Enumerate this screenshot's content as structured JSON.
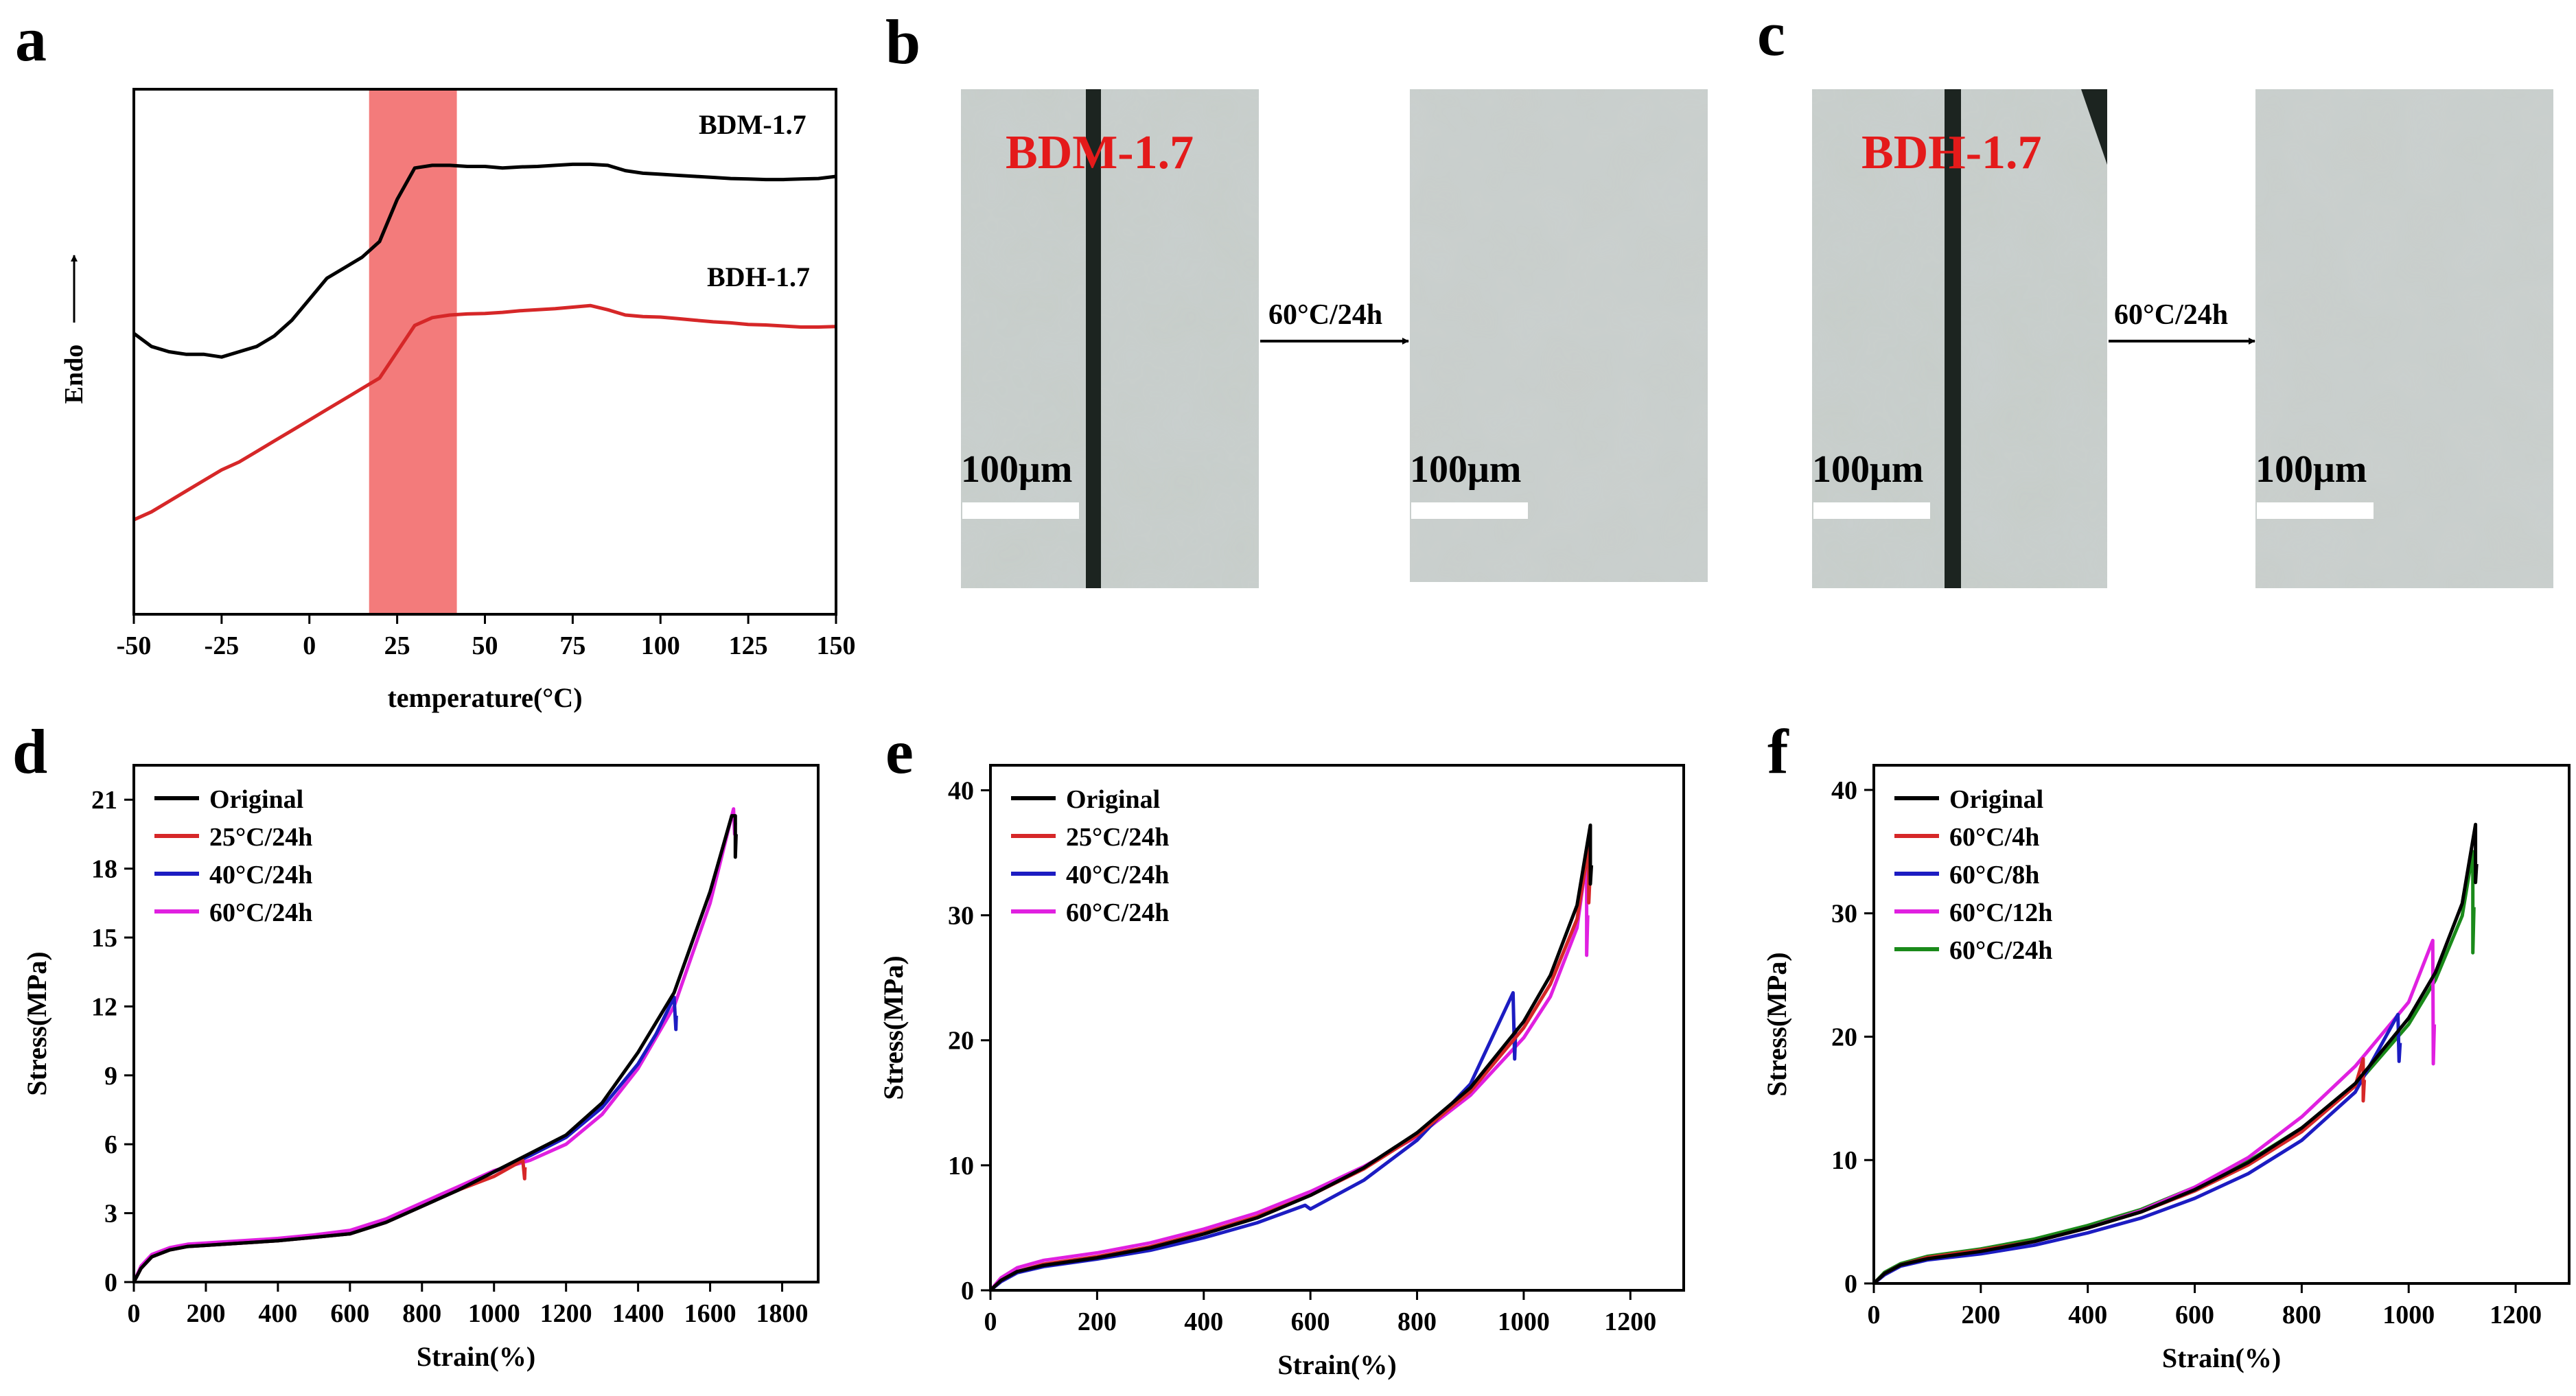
{
  "panels": {
    "a": {
      "letter": "a"
    },
    "b": {
      "letter": "b",
      "sample": "BDM-1.7",
      "treatment": "60°C/24h",
      "scale": "100μm"
    },
    "c": {
      "letter": "c",
      "sample": "BDH-1.7",
      "treatment": "60°C/24h",
      "scale": "100μm"
    },
    "d": {
      "letter": "d"
    },
    "e": {
      "letter": "e"
    },
    "f": {
      "letter": "f"
    }
  },
  "colors": {
    "black": "#000000",
    "red": "#d62728",
    "blue": "#1c1cc2",
    "magenta": "#e020e0",
    "green": "#1a8a1a",
    "band": "#f37b7b",
    "micro": "#c7cdc9"
  },
  "chart_data": [
    {
      "id": "a",
      "type": "line",
      "title": "",
      "xlabel": "temperature(°C)",
      "ylabel": "Endo",
      "xlim": [
        -50,
        150
      ],
      "ylim": [
        0,
        1
      ],
      "show_y_ticks": false,
      "xticks": [
        -50,
        -25,
        0,
        25,
        50,
        75,
        100,
        125,
        150
      ],
      "highlight_band": [
        17,
        42
      ],
      "labels": {
        "BDM-1.7": "BDM-1.7",
        "BDH-1.7": "BDH-1.7"
      },
      "series": [
        {
          "name": "BDM-1.7",
          "color": "#000000",
          "x": [
            -50,
            -45,
            -40,
            -35,
            -30,
            -25,
            -20,
            -15,
            -10,
            -5,
            0,
            5,
            10,
            15,
            20,
            25,
            30,
            35,
            40,
            45,
            50,
            55,
            60,
            65,
            70,
            75,
            80,
            85,
            90,
            95,
            100,
            105,
            110,
            115,
            120,
            125,
            130,
            135,
            140,
            145,
            150
          ],
          "y": [
            0.535,
            0.51,
            0.5,
            0.495,
            0.495,
            0.49,
            0.5,
            0.51,
            0.53,
            0.56,
            0.6,
            0.64,
            0.66,
            0.68,
            0.71,
            0.79,
            0.85,
            0.855,
            0.855,
            0.853,
            0.853,
            0.85,
            0.852,
            0.853,
            0.855,
            0.857,
            0.857,
            0.855,
            0.845,
            0.84,
            0.838,
            0.836,
            0.834,
            0.832,
            0.83,
            0.829,
            0.828,
            0.828,
            0.829,
            0.83,
            0.834
          ]
        },
        {
          "name": "BDH-1.7",
          "color": "#d62728",
          "x": [
            -50,
            -45,
            -40,
            -35,
            -30,
            -25,
            -20,
            -15,
            -10,
            -5,
            0,
            5,
            10,
            15,
            20,
            25,
            30,
            35,
            40,
            45,
            50,
            55,
            60,
            65,
            70,
            75,
            80,
            85,
            90,
            95,
            100,
            105,
            110,
            115,
            120,
            125,
            130,
            135,
            140,
            145,
            150
          ],
          "y": [
            0.18,
            0.195,
            0.215,
            0.235,
            0.255,
            0.275,
            0.29,
            0.31,
            0.33,
            0.35,
            0.37,
            0.39,
            0.41,
            0.43,
            0.45,
            0.5,
            0.55,
            0.565,
            0.57,
            0.572,
            0.573,
            0.575,
            0.578,
            0.58,
            0.582,
            0.585,
            0.588,
            0.58,
            0.57,
            0.567,
            0.566,
            0.563,
            0.56,
            0.557,
            0.555,
            0.552,
            0.551,
            0.549,
            0.547,
            0.547,
            0.548
          ]
        }
      ]
    },
    {
      "id": "d",
      "type": "line",
      "title": "",
      "xlabel": "Strain(%)",
      "ylabel": "Stress(MPa)",
      "xlim": [
        0,
        1900
      ],
      "ylim": [
        0,
        22.5
      ],
      "xticks": [
        0,
        200,
        400,
        600,
        800,
        1000,
        1200,
        1400,
        1600,
        1800
      ],
      "yticks": [
        0,
        3,
        6,
        9,
        12,
        15,
        18,
        21
      ],
      "legend": "top-left",
      "series": [
        {
          "name": "Original",
          "color": "#000000",
          "x": [
            0,
            20,
            50,
            100,
            150,
            200,
            300,
            400,
            500,
            600,
            700,
            800,
            900,
            1000,
            1100,
            1200,
            1300,
            1400,
            1500,
            1600,
            1660,
            1670,
            1670,
            1672
          ],
          "y": [
            0,
            0.6,
            1.1,
            1.4,
            1.55,
            1.6,
            1.7,
            1.8,
            1.95,
            2.1,
            2.6,
            3.3,
            4.0,
            4.8,
            5.6,
            6.4,
            7.8,
            10,
            12.6,
            17,
            20.3,
            20.3,
            18.5,
            19.5
          ]
        },
        {
          "name": "25°C/24h",
          "color": "#d62728",
          "x": [
            0,
            20,
            50,
            100,
            150,
            200,
            300,
            400,
            500,
            600,
            700,
            800,
            900,
            1000,
            1080,
            1085,
            1086
          ],
          "y": [
            0,
            0.6,
            1.1,
            1.4,
            1.55,
            1.6,
            1.7,
            1.8,
            1.95,
            2.1,
            2.6,
            3.3,
            4.0,
            4.6,
            5.3,
            4.5,
            5.0
          ]
        },
        {
          "name": "40°C/24h",
          "color": "#1c1cc2",
          "x": [
            0,
            20,
            50,
            100,
            150,
            200,
            300,
            400,
            500,
            600,
            700,
            800,
            900,
            1000,
            1100,
            1200,
            1300,
            1400,
            1450,
            1500,
            1505,
            1506
          ],
          "y": [
            0,
            0.6,
            1.1,
            1.4,
            1.55,
            1.6,
            1.7,
            1.8,
            1.95,
            2.1,
            2.6,
            3.3,
            4.0,
            4.8,
            5.5,
            6.3,
            7.6,
            9.5,
            10.8,
            12.4,
            11.0,
            11.6
          ]
        },
        {
          "name": "60°C/24h",
          "color": "#e020e0",
          "x": [
            0,
            20,
            50,
            100,
            150,
            200,
            300,
            400,
            500,
            600,
            700,
            800,
            900,
            1000,
            1100,
            1200,
            1300,
            1400,
            1500,
            1600,
            1665,
            1668,
            1670
          ],
          "y": [
            0,
            0.7,
            1.2,
            1.5,
            1.65,
            1.7,
            1.8,
            1.9,
            2.05,
            2.25,
            2.75,
            3.45,
            4.15,
            4.85,
            5.3,
            6.0,
            7.3,
            9.3,
            12.0,
            16.5,
            20.6,
            19.5,
            20.0
          ]
        }
      ]
    },
    {
      "id": "e",
      "type": "line",
      "title": "",
      "xlabel": "Strain(%)",
      "ylabel": "Stress(MPa)",
      "xlim": [
        0,
        1300
      ],
      "ylim": [
        0,
        42
      ],
      "xticks": [
        0,
        200,
        400,
        600,
        800,
        1000,
        1200
      ],
      "yticks": [
        0,
        10,
        20,
        30,
        40
      ],
      "legend": "top-left",
      "series": [
        {
          "name": "Original",
          "color": "#000000",
          "x": [
            0,
            20,
            50,
            100,
            200,
            300,
            400,
            500,
            600,
            700,
            800,
            900,
            1000,
            1050,
            1100,
            1125,
            1125,
            1127
          ],
          "y": [
            0,
            0.8,
            1.5,
            2.0,
            2.6,
            3.4,
            4.5,
            5.8,
            7.6,
            9.8,
            12.6,
            16.2,
            21.5,
            25.2,
            30.8,
            37.2,
            32.5,
            34.0
          ]
        },
        {
          "name": "25°C/24h",
          "color": "#d62728",
          "x": [
            0,
            20,
            50,
            100,
            200,
            300,
            400,
            500,
            600,
            700,
            800,
            900,
            1000,
            1050,
            1100,
            1122,
            1122,
            1124
          ],
          "y": [
            0,
            0.8,
            1.5,
            2.1,
            2.7,
            3.5,
            4.6,
            5.9,
            7.6,
            9.7,
            12.4,
            15.9,
            21.0,
            24.5,
            29.7,
            35.5,
            31.0,
            33.0
          ]
        },
        {
          "name": "40°C/24h",
          "color": "#1c1cc2",
          "x": [
            0,
            20,
            50,
            100,
            200,
            300,
            400,
            500,
            590,
            600,
            700,
            800,
            900,
            980,
            983,
            985
          ],
          "y": [
            0,
            0.7,
            1.4,
            1.9,
            2.5,
            3.2,
            4.2,
            5.4,
            6.8,
            6.5,
            8.8,
            12.0,
            16.5,
            23.8,
            18.5,
            21.0
          ]
        },
        {
          "name": "60°C/24h",
          "color": "#e020e0",
          "x": [
            0,
            20,
            50,
            100,
            200,
            300,
            400,
            500,
            600,
            700,
            800,
            900,
            1000,
            1050,
            1100,
            1118,
            1118,
            1120
          ],
          "y": [
            0,
            1.0,
            1.8,
            2.4,
            3.0,
            3.8,
            4.9,
            6.2,
            7.9,
            9.9,
            12.3,
            15.6,
            20.2,
            23.5,
            29.0,
            34.5,
            26.8,
            30.0
          ]
        }
      ]
    },
    {
      "id": "f",
      "type": "line",
      "title": "",
      "xlabel": "Strain(%)",
      "ylabel": "Stress(MPa)",
      "xlim": [
        0,
        1300
      ],
      "ylim": [
        0,
        42
      ],
      "xticks": [
        0,
        200,
        400,
        600,
        800,
        1000,
        1200
      ],
      "yticks": [
        0,
        10,
        20,
        30,
        40
      ],
      "legend": "top-left",
      "series": [
        {
          "name": "Original",
          "color": "#000000",
          "x": [
            0,
            20,
            50,
            100,
            200,
            300,
            400,
            500,
            600,
            700,
            800,
            900,
            1000,
            1050,
            1100,
            1125,
            1125,
            1127
          ],
          "y": [
            0,
            0.8,
            1.5,
            2.0,
            2.6,
            3.4,
            4.5,
            5.8,
            7.6,
            9.8,
            12.6,
            16.2,
            21.5,
            25.2,
            30.8,
            37.2,
            32.5,
            34.0
          ]
        },
        {
          "name": "60°C/4h",
          "color": "#d62728",
          "x": [
            0,
            20,
            50,
            100,
            200,
            300,
            400,
            500,
            600,
            700,
            800,
            900,
            915,
            915,
            917
          ],
          "y": [
            0,
            0.8,
            1.5,
            2.1,
            2.7,
            3.4,
            4.5,
            5.8,
            7.5,
            9.6,
            12.3,
            16.0,
            18.2,
            14.8,
            16.5
          ]
        },
        {
          "name": "60°C/8h",
          "color": "#1c1cc2",
          "x": [
            0,
            20,
            50,
            100,
            200,
            300,
            400,
            500,
            600,
            700,
            800,
            900,
            980,
            982,
            984
          ],
          "y": [
            0,
            0.7,
            1.4,
            1.9,
            2.4,
            3.1,
            4.1,
            5.3,
            6.9,
            8.9,
            11.6,
            15.5,
            21.8,
            18.0,
            19.5
          ]
        },
        {
          "name": "60°C/12h",
          "color": "#e020e0",
          "x": [
            0,
            20,
            50,
            100,
            200,
            300,
            400,
            500,
            600,
            700,
            800,
            900,
            1000,
            1045,
            1046,
            1048
          ],
          "y": [
            0,
            0.8,
            1.5,
            2.0,
            2.6,
            3.4,
            4.5,
            5.9,
            7.8,
            10.2,
            13.5,
            17.6,
            22.8,
            27.8,
            17.8,
            21.0
          ]
        },
        {
          "name": "60°C/24h",
          "color": "#1a8a1a",
          "x": [
            0,
            20,
            50,
            100,
            200,
            300,
            400,
            500,
            600,
            700,
            800,
            900,
            1000,
            1050,
            1100,
            1120,
            1120,
            1122
          ],
          "y": [
            0,
            0.9,
            1.6,
            2.2,
            2.8,
            3.6,
            4.7,
            6.0,
            7.8,
            9.9,
            12.6,
            16.0,
            21.0,
            24.6,
            29.8,
            35.0,
            26.8,
            30.5
          ]
        }
      ]
    }
  ]
}
